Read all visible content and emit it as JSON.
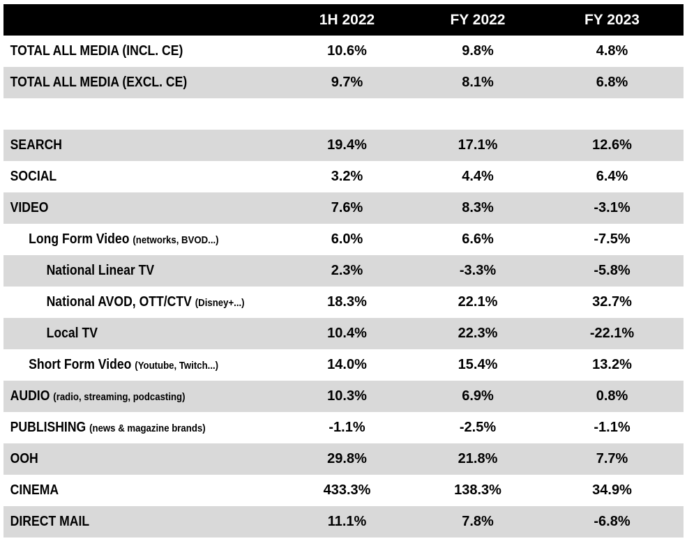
{
  "columns": [
    "1H 2022",
    "FY 2022",
    "FY 2023"
  ],
  "rows": [
    {
      "label": "TOTAL ALL MEDIA (INCL. CE)",
      "sub": "",
      "indent": 0,
      "shade": false,
      "values": [
        "10.6%",
        "9.8%",
        "4.8%"
      ]
    },
    {
      "label": "TOTAL ALL MEDIA (EXCL. CE)",
      "sub": "",
      "indent": 0,
      "shade": true,
      "values": [
        "9.7%",
        "8.1%",
        "6.8%"
      ]
    },
    {
      "label": "",
      "sub": "",
      "indent": 0,
      "shade": false,
      "gap": true,
      "values": [
        "",
        "",
        ""
      ]
    },
    {
      "label": "SEARCH",
      "sub": "",
      "indent": 0,
      "shade": true,
      "values": [
        "19.4%",
        "17.1%",
        "12.6%"
      ]
    },
    {
      "label": "SOCIAL",
      "sub": "",
      "indent": 0,
      "shade": false,
      "values": [
        "3.2%",
        "4.4%",
        "6.4%"
      ]
    },
    {
      "label": "VIDEO",
      "sub": "",
      "indent": 0,
      "shade": true,
      "values": [
        "7.6%",
        "8.3%",
        "-3.1%"
      ]
    },
    {
      "label": "Long Form Video",
      "sub": "(networks, BVOD...)",
      "indent": 1,
      "shade": false,
      "values": [
        "6.0%",
        "6.6%",
        "-7.5%"
      ]
    },
    {
      "label": "National Linear TV",
      "sub": "",
      "indent": 2,
      "shade": true,
      "values": [
        "2.3%",
        "-3.3%",
        "-5.8%"
      ]
    },
    {
      "label": "National AVOD, OTT/CTV",
      "sub": "(Disney+...)",
      "indent": 2,
      "shade": false,
      "values": [
        "18.3%",
        "22.1%",
        "32.7%"
      ]
    },
    {
      "label": "Local TV",
      "sub": "",
      "indent": 2,
      "shade": true,
      "values": [
        "10.4%",
        "22.3%",
        "-22.1%"
      ]
    },
    {
      "label": "Short Form Video",
      "sub": "(Youtube, Twitch...)",
      "indent": 1,
      "shade": false,
      "values": [
        "14.0%",
        "15.4%",
        "13.2%"
      ]
    },
    {
      "label": "AUDIO",
      "sub": "(radio, streaming, podcasting)",
      "indent": 0,
      "shade": true,
      "values": [
        "10.3%",
        "6.9%",
        "0.8%"
      ]
    },
    {
      "label": "PUBLISHING",
      "sub": "(news & magazine brands)",
      "indent": 0,
      "shade": false,
      "values": [
        "-1.1%",
        "-2.5%",
        "-1.1%"
      ]
    },
    {
      "label": "OOH",
      "sub": "",
      "indent": 0,
      "shade": true,
      "values": [
        "29.8%",
        "21.8%",
        "7.7%"
      ]
    },
    {
      "label": "CINEMA",
      "sub": "",
      "indent": 0,
      "shade": false,
      "values": [
        "433.3%",
        "138.3%",
        "34.9%"
      ]
    },
    {
      "label": "DIRECT MAIL",
      "sub": "",
      "indent": 0,
      "shade": true,
      "values": [
        "11.1%",
        "7.8%",
        "-6.8%"
      ]
    }
  ],
  "colors": {
    "header_bg": "#000000",
    "header_text": "#ffffff",
    "shade": "#d9d9d9"
  }
}
